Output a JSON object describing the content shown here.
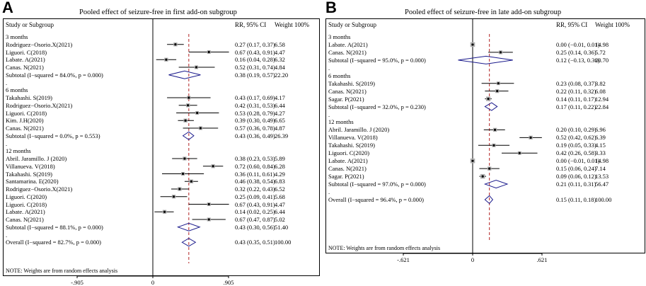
{
  "chart_data": [
    {
      "type": "forest",
      "panel_letter": "A",
      "title": "Pooled effect of seizure-free in first add-on subgroup",
      "col_study": "Study or Subgroup",
      "col_effect": "RR, 95% CI",
      "col_weight": "Weight 100%",
      "x_ticks": [
        "-.905",
        "0",
        ".905"
      ],
      "x_range": [
        -0.905,
        0.905
      ],
      "ref_line": 0,
      "pooled_line": 0.43,
      "rows": [
        {
          "kind": "group",
          "label": "3 months"
        },
        {
          "kind": "study",
          "label": "Rodriguez−Osorio.X(2021)",
          "est": 0.27,
          "lo": 0.17,
          "hi": 0.37,
          "ci": "0.27 (0.17, 0.37)",
          "weight": "6.58"
        },
        {
          "kind": "study",
          "label": "Liguori. C(2018)",
          "est": 0.67,
          "lo": 0.43,
          "hi": 0.91,
          "ci": "0.67 (0.43, 0.91)",
          "weight": "4.47"
        },
        {
          "kind": "study",
          "label": "Labate. A(2021)",
          "est": 0.16,
          "lo": 0.04,
          "hi": 0.28,
          "ci": "0.16 (0.04, 0.28)",
          "weight": "6.32"
        },
        {
          "kind": "study",
          "label": "Canas. N(2021)",
          "est": 0.52,
          "lo": 0.31,
          "hi": 0.74,
          "ci": "0.52 (0.31, 0.74)",
          "weight": "4.84"
        },
        {
          "kind": "subtotal",
          "label": "Subtotal  (I−squared = 84.0%, p = 0.000)",
          "est": 0.38,
          "lo": 0.19,
          "hi": 0.57,
          "ci": "0.38 (0.19, 0.57)",
          "weight": "22.20"
        },
        {
          "kind": "dot",
          "label": "."
        },
        {
          "kind": "group",
          "label": "6 months"
        },
        {
          "kind": "study",
          "label": "Takahashi. S(2019)",
          "est": 0.43,
          "lo": 0.17,
          "hi": 0.69,
          "ci": "0.43 (0.17, 0.69)",
          "weight": "4.17"
        },
        {
          "kind": "study",
          "label": "Rodriguez−Osorio.X(2021)",
          "est": 0.42,
          "lo": 0.31,
          "hi": 0.53,
          "ci": "0.42 (0.31, 0.53)",
          "weight": "6.44"
        },
        {
          "kind": "study",
          "label": "Liguori. C(2018)",
          "est": 0.53,
          "lo": 0.28,
          "hi": 0.79,
          "ci": "0.53 (0.28, 0.79)",
          "weight": "4.27"
        },
        {
          "kind": "study",
          "label": "Kim. J.H(2020)",
          "est": 0.39,
          "lo": 0.3,
          "hi": 0.49,
          "ci": "0.39 (0.30, 0.49)",
          "weight": "6.65"
        },
        {
          "kind": "study",
          "label": "Canas. N(2021)",
          "est": 0.57,
          "lo": 0.36,
          "hi": 0.78,
          "ci": "0.57 (0.36, 0.78)",
          "weight": "4.87"
        },
        {
          "kind": "subtotal",
          "label": "Subtotal  (I−squared = 0.0%, p = 0.553)",
          "est": 0.43,
          "lo": 0.36,
          "hi": 0.49,
          "ci": "0.43 (0.36, 0.49)",
          "weight": "26.39"
        },
        {
          "kind": "dot",
          "label": "."
        },
        {
          "kind": "group",
          "label": "12 months"
        },
        {
          "kind": "study",
          "label": "Abril. Jaramillo. J (2020)",
          "est": 0.38,
          "lo": 0.23,
          "hi": 0.53,
          "ci": "0.38 (0.23, 0.53)",
          "weight": "5.89"
        },
        {
          "kind": "study",
          "label": "Villanueva. V(2018)",
          "est": 0.72,
          "lo": 0.6,
          "hi": 0.84,
          "ci": "0.72 (0.60, 0.84)",
          "weight": "6.28"
        },
        {
          "kind": "study",
          "label": "Takahashi. S(2019)",
          "est": 0.36,
          "lo": 0.11,
          "hi": 0.61,
          "ci": "0.36 (0.11, 0.61)",
          "weight": "4.29"
        },
        {
          "kind": "study",
          "label": "Santamarina. E(2020)",
          "est": 0.46,
          "lo": 0.38,
          "hi": 0.54,
          "ci": "0.46 (0.38, 0.54)",
          "weight": "6.83"
        },
        {
          "kind": "study",
          "label": "Rodriguez−Osorio.X(2021)",
          "est": 0.32,
          "lo": 0.22,
          "hi": 0.43,
          "ci": "0.32 (0.22, 0.43)",
          "weight": "6.52"
        },
        {
          "kind": "study",
          "label": "Liguori. C(2020)",
          "est": 0.25,
          "lo": 0.09,
          "hi": 0.41,
          "ci": "0.25 (0.09, 0.41)",
          "weight": "5.68"
        },
        {
          "kind": "study",
          "label": "Liguori. C(2018)",
          "est": 0.67,
          "lo": 0.43,
          "hi": 0.91,
          "ci": "0.67 (0.43, 0.91)",
          "weight": "4.47"
        },
        {
          "kind": "study",
          "label": "Labate. A(2021)",
          "est": 0.14,
          "lo": 0.02,
          "hi": 0.25,
          "ci": "0.14 (0.02, 0.25)",
          "weight": "6.44"
        },
        {
          "kind": "study",
          "label": "Canas. N(2021)",
          "est": 0.67,
          "lo": 0.47,
          "hi": 0.87,
          "ci": "0.67 (0.47, 0.87)",
          "weight": "5.02"
        },
        {
          "kind": "subtotal",
          "label": "Subtotal  (I−squared = 88.1%, p = 0.000)",
          "est": 0.43,
          "lo": 0.3,
          "hi": 0.56,
          "ci": "0.43 (0.30, 0.56)",
          "weight": "51.40"
        },
        {
          "kind": "dot",
          "label": "."
        },
        {
          "kind": "overall",
          "label": "Overall  (I−squared = 82.7%, p = 0.000)",
          "est": 0.43,
          "lo": 0.35,
          "hi": 0.51,
          "ci": "0.43 (0.35, 0.51)",
          "weight": "100.00"
        }
      ],
      "note": "NOTE: Weights are from random effects analysis"
    },
    {
      "type": "forest",
      "panel_letter": "B",
      "title": "Pooled effect of seizure-free in late add-on subgroup",
      "col_study": "Study or Subgroup",
      "col_effect": "RR, 95% CI",
      "col_weight": "Weight 100%",
      "x_ticks": [
        "-.621",
        "0",
        ".621"
      ],
      "x_range": [
        -0.621,
        0.621
      ],
      "ref_line": 0,
      "pooled_line": 0.15,
      "rows": [
        {
          "kind": "group",
          "label": "3 months"
        },
        {
          "kind": "study",
          "label": "Labate. A(2021)",
          "est": 0.0,
          "lo": -0.01,
          "hi": 0.01,
          "ci": "0.00 (−0.01, 0.01)",
          "weight": "14.98"
        },
        {
          "kind": "study",
          "label": "Canas. N(2021)",
          "est": 0.25,
          "lo": 0.14,
          "hi": 0.36,
          "ci": "0.25 (0.14, 0.36)",
          "weight": "5.72"
        },
        {
          "kind": "subtotal",
          "label": "Subtotal  (I−squared = 95.0%, p = 0.000)",
          "est": 0.12,
          "lo": -0.13,
          "hi": 0.36,
          "ci": "0.12 (−0.13, 0.36)",
          "weight": "20.70"
        },
        {
          "kind": "dot",
          "label": "."
        },
        {
          "kind": "group",
          "label": "6 months"
        },
        {
          "kind": "study",
          "label": "Takahashi. S(2019)",
          "est": 0.23,
          "lo": 0.08,
          "hi": 0.37,
          "ci": "0.23 (0.08, 0.37)",
          "weight": "3.82"
        },
        {
          "kind": "study",
          "label": "Canas. N(2021)",
          "est": 0.22,
          "lo": 0.11,
          "hi": 0.32,
          "ci": "0.22 (0.11, 0.32)",
          "weight": "6.08"
        },
        {
          "kind": "study",
          "label": "Sagar. P(2021)",
          "est": 0.14,
          "lo": 0.11,
          "hi": 0.17,
          "ci": "0.14 (0.11, 0.17)",
          "weight": "12.94"
        },
        {
          "kind": "subtotal",
          "label": "Subtotal  (I−squared = 32.0%, p = 0.230)",
          "est": 0.17,
          "lo": 0.11,
          "hi": 0.22,
          "ci": "0.17 (0.11, 0.22)",
          "weight": "22.84"
        },
        {
          "kind": "dot",
          "label": "."
        },
        {
          "kind": "group",
          "label": "12 months"
        },
        {
          "kind": "study",
          "label": "Abril. Jaramillo. J (2020)",
          "est": 0.2,
          "lo": 0.1,
          "hi": 0.29,
          "ci": "0.20 (0.10, 0.29)",
          "weight": "6.96"
        },
        {
          "kind": "study",
          "label": "Villanueva. V(2018)",
          "est": 0.52,
          "lo": 0.42,
          "hi": 0.62,
          "ci": "0.52 (0.42, 0.62)",
          "weight": "6.39"
        },
        {
          "kind": "study",
          "label": "Takahashi. S(2019)",
          "est": 0.19,
          "lo": 0.05,
          "hi": 0.33,
          "ci": "0.19 (0.05, 0.33)",
          "weight": "4.15"
        },
        {
          "kind": "study",
          "label": "Liguori. C(2020)",
          "est": 0.42,
          "lo": 0.26,
          "hi": 0.58,
          "ci": "0.42 (0.26, 0.58)",
          "weight": "3.33"
        },
        {
          "kind": "study",
          "label": "Labate. A(2021)",
          "est": 0.0,
          "lo": -0.01,
          "hi": 0.01,
          "ci": "0.00 (−0.01, 0.01)",
          "weight": "14.98"
        },
        {
          "kind": "study",
          "label": "Canas. N(2021)",
          "est": 0.15,
          "lo": 0.06,
          "hi": 0.24,
          "ci": "0.15 (0.06, 0.24)",
          "weight": "7.14"
        },
        {
          "kind": "study",
          "label": "Sagar. P(2021)",
          "est": 0.09,
          "lo": 0.06,
          "hi": 0.12,
          "ci": "0.09 (0.06, 0.12)",
          "weight": "13.53"
        },
        {
          "kind": "subtotal",
          "label": "Subtotal  (I−squared = 97.0%, p = 0.000)",
          "est": 0.21,
          "lo": 0.11,
          "hi": 0.31,
          "ci": "0.21 (0.11, 0.31)",
          "weight": "56.47"
        },
        {
          "kind": "dot",
          "label": "."
        },
        {
          "kind": "overall",
          "label": "Overall  (I−squared = 96.4%, p = 0.000)",
          "est": 0.15,
          "lo": 0.11,
          "hi": 0.18,
          "ci": "0.15 (0.11, 0.18)",
          "weight": "100.00"
        }
      ],
      "note": "NOTE: Weights are from random effects analysis"
    }
  ],
  "colors": {
    "diamond": "#1a1a8c",
    "pooled_line": "#b22222",
    "box": "#b0b0b0",
    "line": "#000000"
  }
}
